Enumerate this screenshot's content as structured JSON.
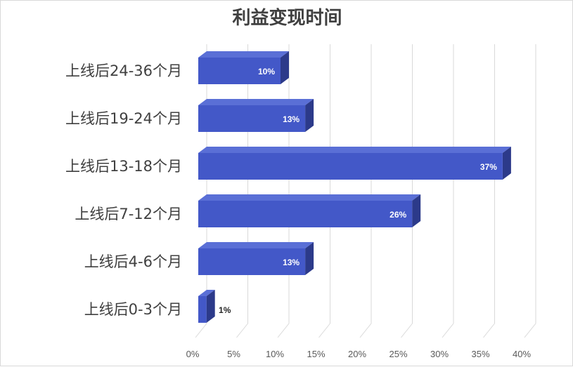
{
  "chart_data": {
    "type": "bar",
    "orientation": "horizontal",
    "style": "3d",
    "title": "利益变现时间",
    "categories": [
      "上线后0-3个月",
      "上线后4-6个月",
      "上线后7-12个月",
      "上线后13-18个月",
      "上线后19-24个月",
      "上线后24-36个月"
    ],
    "values": [
      1,
      13,
      26,
      37,
      13,
      10
    ],
    "data_labels": [
      "1%",
      "13%",
      "26%",
      "37%",
      "13%",
      "10%"
    ],
    "xlim": [
      0,
      40
    ],
    "x_ticks": [
      "0%",
      "5%",
      "10%",
      "15%",
      "20%",
      "25%",
      "30%",
      "35%",
      "40%"
    ],
    "grid": true,
    "legend": "none",
    "colors": {
      "bar_front": "#4358c8",
      "bar_top": "#5a6fd6",
      "bar_side": "#2c3a8a",
      "grid": "#d9d9d9",
      "label_inside": "#ffffff",
      "label_outside": "#262626"
    }
  }
}
